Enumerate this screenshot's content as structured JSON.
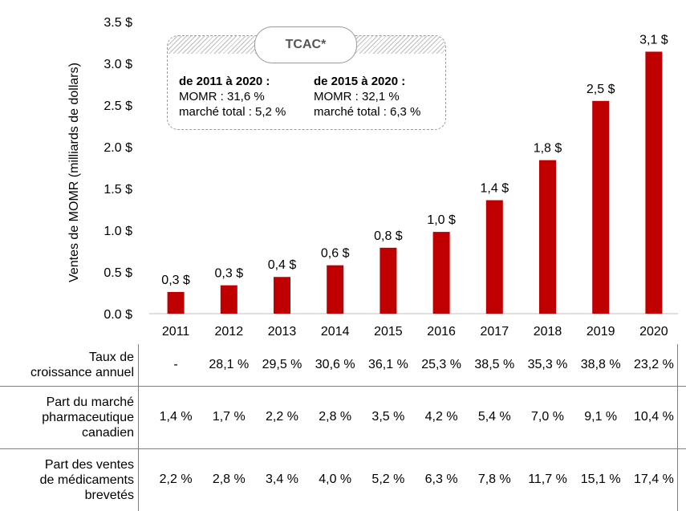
{
  "chart_data": {
    "type": "bar",
    "categories": [
      "2011",
      "2012",
      "2013",
      "2014",
      "2015",
      "2016",
      "2017",
      "2018",
      "2019",
      "2020"
    ],
    "values": [
      0.26,
      0.34,
      0.44,
      0.58,
      0.79,
      0.98,
      1.36,
      1.84,
      2.55,
      3.14
    ],
    "bar_labels": [
      "0,3 $",
      "0,3 $",
      "0,4 $",
      "0,6 $",
      "0,8 $",
      "1,0 $",
      "1,4 $",
      "1,8 $",
      "2,5 $",
      "3,1 $"
    ],
    "ylabel": "Ventes de MOMR (milliards de dollars)",
    "yticks": [
      0,
      0.5,
      1.0,
      1.5,
      2.0,
      2.5,
      3.0,
      3.5
    ],
    "ytick_labels": [
      "0.0 $",
      "0.5 $",
      "1.0 $",
      "1.5 $",
      "2.0 $",
      "2.5 $",
      "3.0 $",
      "3.5 $"
    ],
    "ylim": [
      0,
      3.5
    ],
    "bar_color": "#c00000",
    "grid": false
  },
  "tcac": {
    "title": "TCAC*",
    "left": {
      "heading": "de 2011 à 2020 :",
      "line1": "MOMR : 31,6 %",
      "line2": "marché total : 5,2 %"
    },
    "right": {
      "heading": "de 2015 à 2020 :",
      "line1": "MOMR : 32,1 %",
      "line2": "marché total : 6,3 %"
    }
  },
  "table": {
    "rows": [
      {
        "label": [
          "Taux de",
          "croissance annuel"
        ],
        "values": [
          "-",
          "28,1 %",
          "29,5 %",
          "30,6 %",
          "36,1 %",
          "25,3 %",
          "38,5 %",
          "35,3 %",
          "38,8 %",
          "23,2 %"
        ]
      },
      {
        "label": [
          "Part du marché",
          "pharmaceutique",
          "canadien"
        ],
        "values": [
          "1,4 %",
          "1,7 %",
          "2,2 %",
          "2,8 %",
          "3,5 %",
          "4,2 %",
          "5,4 %",
          "7,0 %",
          "9,1 %",
          "10,4 %"
        ]
      },
      {
        "label": [
          "Part des ventes",
          "de médicaments",
          "brevetés"
        ],
        "values": [
          "2,2 %",
          "2,8 %",
          "3,4 %",
          "4,0 %",
          "5,2 %",
          "6,3 %",
          "7,8 %",
          "11,7 %",
          "15,1 %",
          "17,4 %"
        ]
      }
    ]
  }
}
